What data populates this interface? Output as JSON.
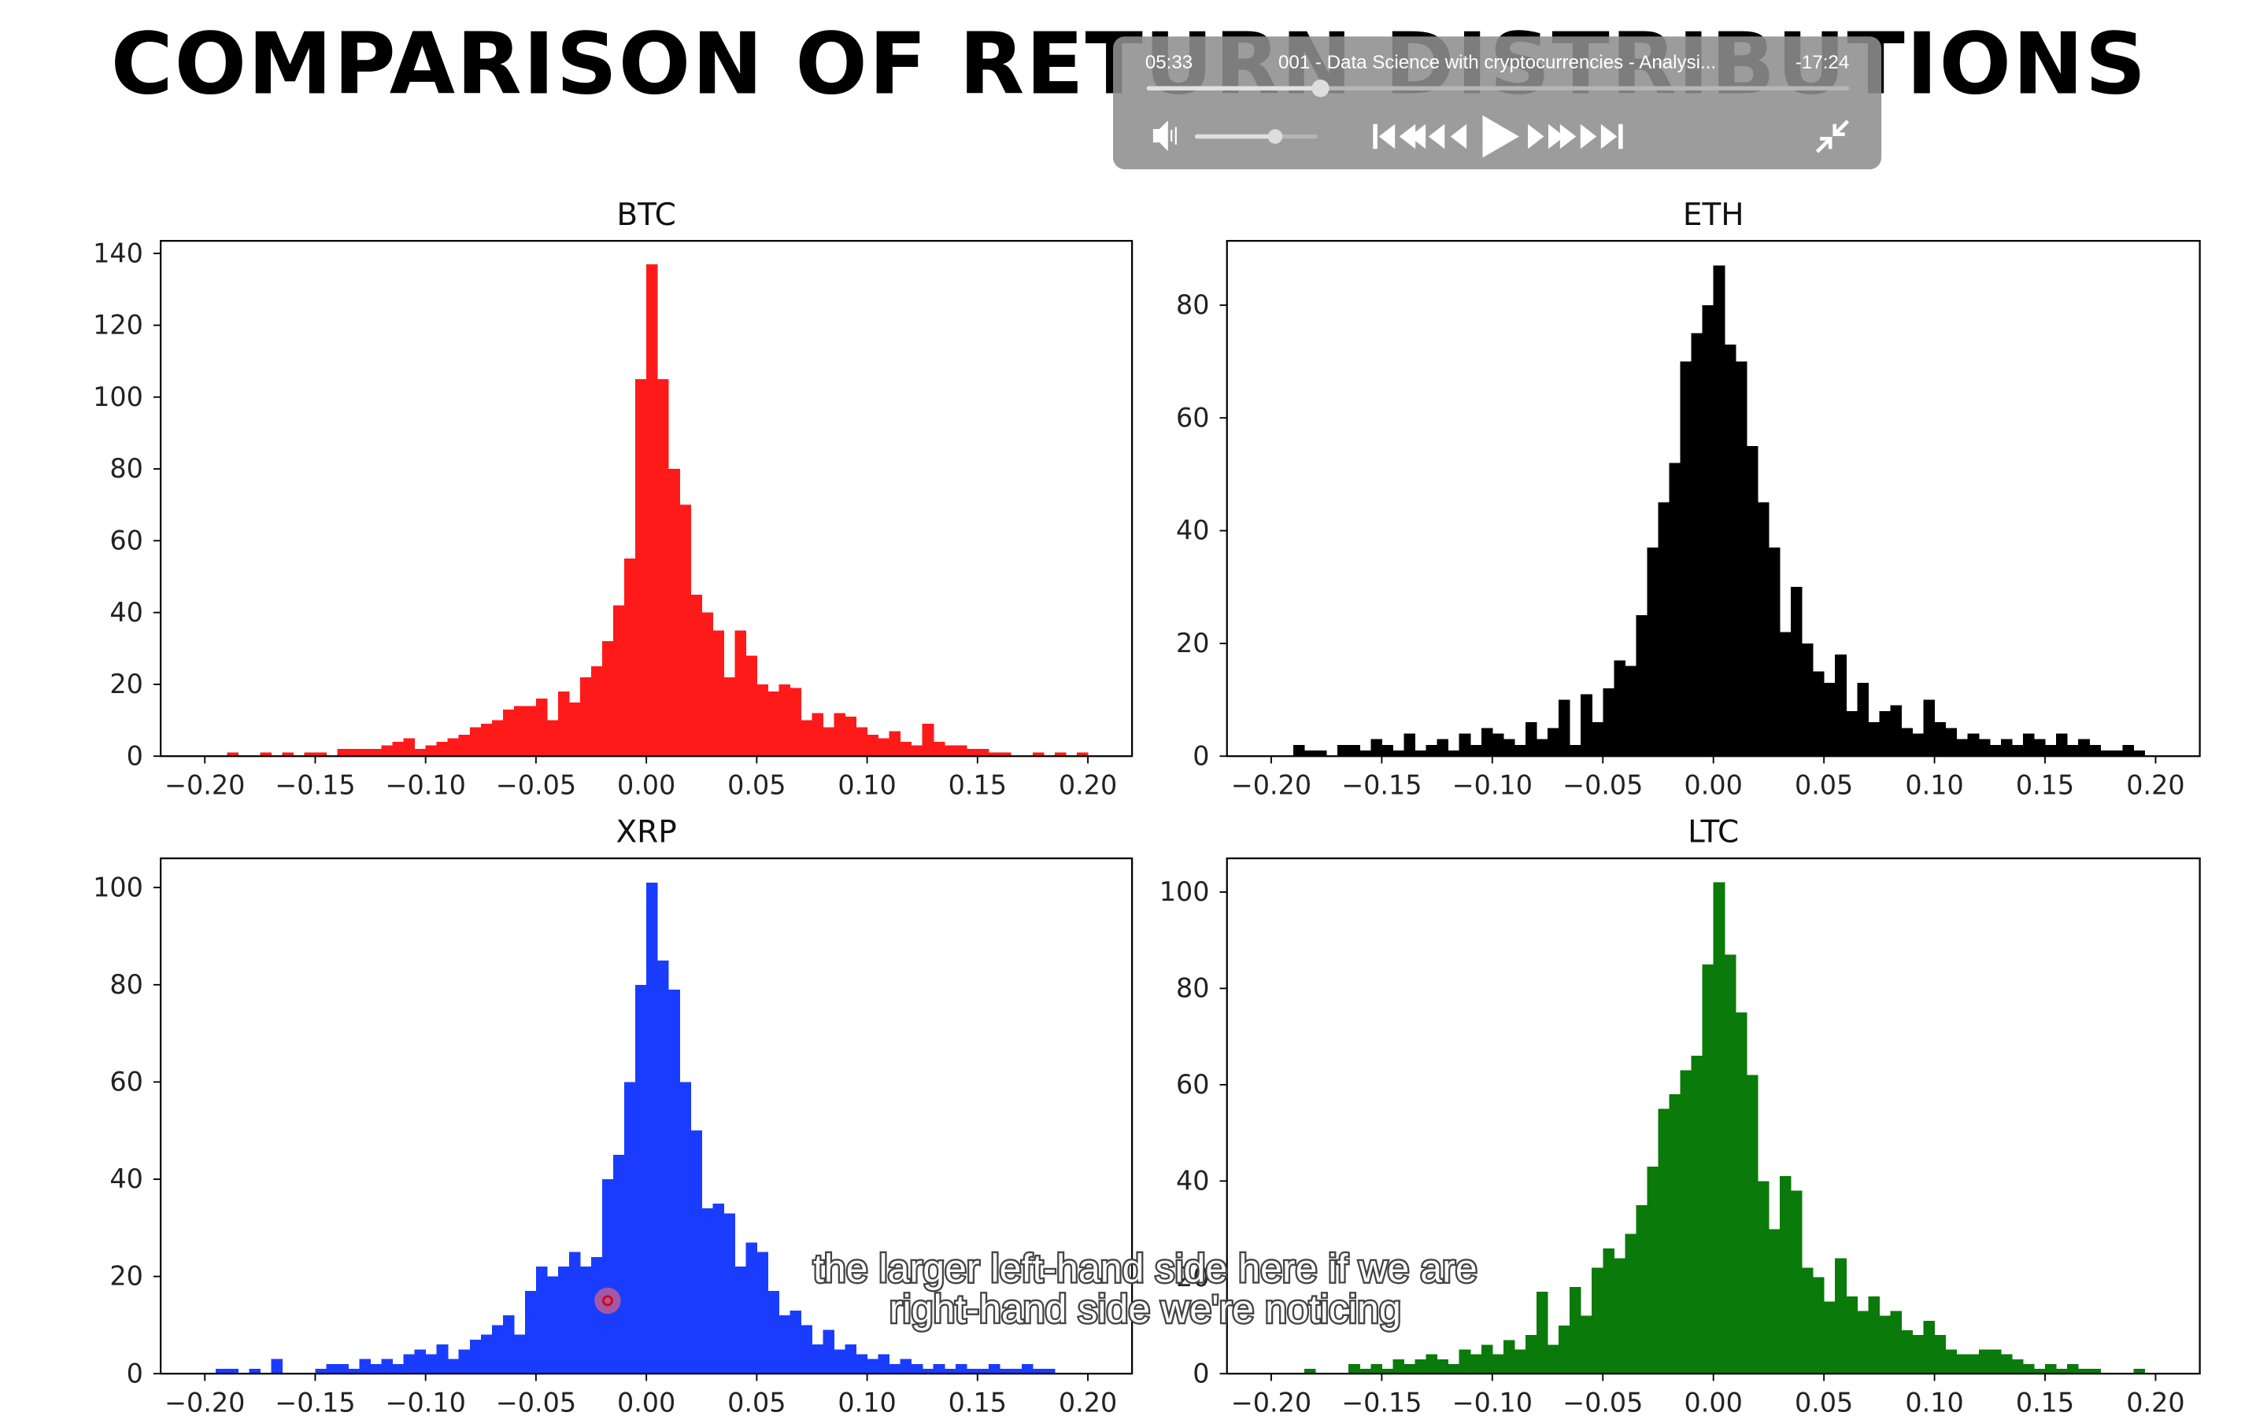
{
  "page_title": "COMPARISON OF RETURN DISTRIBUTIONS",
  "chart_data": [
    {
      "type": "histogram",
      "title": "BTC",
      "color": "#ff1a1a",
      "bins": [
        -0.2,
        -0.195,
        -0.19,
        -0.185,
        -0.18,
        -0.175,
        -0.17,
        -0.165,
        -0.16,
        -0.155,
        -0.15,
        -0.145,
        -0.14,
        -0.135,
        -0.13,
        -0.125,
        -0.12,
        -0.115,
        -0.11,
        -0.105,
        -0.1,
        -0.095,
        -0.09,
        -0.085,
        -0.08,
        -0.075,
        -0.07,
        -0.065,
        -0.06,
        -0.055,
        -0.05,
        -0.045,
        -0.04,
        -0.035,
        -0.03,
        -0.025,
        -0.02,
        -0.015,
        -0.01,
        -0.005,
        0,
        0.005,
        0.01,
        0.015,
        0.02,
        0.025,
        0.03,
        0.035,
        0.04,
        0.045,
        0.05,
        0.055,
        0.06,
        0.065,
        0.07,
        0.075,
        0.08,
        0.085,
        0.09,
        0.095,
        0.1,
        0.105,
        0.11,
        0.115,
        0.12,
        0.125,
        0.13,
        0.135,
        0.14,
        0.145,
        0.15,
        0.155,
        0.16,
        0.165,
        0.17,
        0.175,
        0.18,
        0.185,
        0.19,
        0.195,
        0.2
      ],
      "values": [
        0,
        0,
        1,
        0,
        0,
        1,
        0,
        1,
        0,
        1,
        1,
        0,
        2,
        2,
        2,
        2,
        3,
        4,
        5,
        2,
        3,
        4,
        5,
        6,
        8,
        9,
        10,
        13,
        14,
        14,
        16,
        10,
        18,
        15,
        22,
        25,
        32,
        42,
        55,
        105,
        137,
        105,
        80,
        70,
        45,
        40,
        35,
        22,
        35,
        28,
        20,
        18,
        20,
        19,
        10,
        12,
        8,
        12,
        11,
        8,
        6,
        5,
        7,
        4,
        3,
        9,
        4,
        3,
        3,
        2,
        2,
        1,
        1,
        0,
        0,
        1,
        0,
        1,
        0,
        1
      ],
      "xlim": [
        -0.22,
        0.22
      ],
      "ylim": [
        0,
        143.5
      ],
      "xticks": [
        {
          "value": -0.2,
          "label": "−0.20"
        },
        {
          "value": -0.15,
          "label": "−0.15"
        },
        {
          "value": -0.1,
          "label": "−0.10"
        },
        {
          "value": -0.05,
          "label": "−0.05"
        },
        {
          "value": 0,
          "label": "0.00"
        },
        {
          "value": 0.05,
          "label": "0.05"
        },
        {
          "value": 0.1,
          "label": "0.10"
        },
        {
          "value": 0.15,
          "label": "0.15"
        },
        {
          "value": 0.2,
          "label": "0.20"
        }
      ],
      "yticks": [
        0,
        20,
        40,
        60,
        80,
        100,
        120,
        140
      ]
    },
    {
      "type": "histogram",
      "title": "ETH",
      "color": "#000000",
      "bins": [
        -0.2,
        -0.195,
        -0.19,
        -0.185,
        -0.18,
        -0.175,
        -0.17,
        -0.165,
        -0.16,
        -0.155,
        -0.15,
        -0.145,
        -0.14,
        -0.135,
        -0.13,
        -0.125,
        -0.12,
        -0.115,
        -0.11,
        -0.105,
        -0.1,
        -0.095,
        -0.09,
        -0.085,
        -0.08,
        -0.075,
        -0.07,
        -0.065,
        -0.06,
        -0.055,
        -0.05,
        -0.045,
        -0.04,
        -0.035,
        -0.03,
        -0.025,
        -0.02,
        -0.015,
        -0.01,
        -0.005,
        0,
        0.005,
        0.01,
        0.015,
        0.02,
        0.025,
        0.03,
        0.035,
        0.04,
        0.045,
        0.05,
        0.055,
        0.06,
        0.065,
        0.07,
        0.075,
        0.08,
        0.085,
        0.09,
        0.095,
        0.1,
        0.105,
        0.11,
        0.115,
        0.12,
        0.125,
        0.13,
        0.135,
        0.14,
        0.145,
        0.15,
        0.155,
        0.16,
        0.165,
        0.17,
        0.175,
        0.18,
        0.185,
        0.19,
        0.195,
        0.2
      ],
      "values": [
        0,
        0,
        2,
        1,
        1,
        0,
        2,
        2,
        1,
        3,
        2,
        1,
        4,
        1,
        2,
        3,
        1,
        4,
        2,
        5,
        4,
        3,
        2,
        6,
        3,
        5,
        10,
        2,
        11,
        6,
        12,
        17,
        16,
        25,
        37,
        45,
        52,
        70,
        75,
        80,
        87,
        73,
        70,
        55,
        45,
        37,
        22,
        30,
        20,
        15,
        13,
        18,
        8,
        13,
        6,
        8,
        9,
        5,
        4,
        10,
        6,
        5,
        3,
        4,
        3,
        2,
        3,
        2,
        4,
        3,
        2,
        4,
        2,
        3,
        2,
        1,
        1,
        2,
        1,
        0
      ],
      "xlim": [
        -0.22,
        0.22
      ],
      "ylim": [
        0,
        91.4
      ],
      "xticks": [
        {
          "value": -0.2,
          "label": "−0.20"
        },
        {
          "value": -0.15,
          "label": "−0.15"
        },
        {
          "value": -0.1,
          "label": "−0.10"
        },
        {
          "value": -0.05,
          "label": "−0.05"
        },
        {
          "value": 0,
          "label": "0.00"
        },
        {
          "value": 0.05,
          "label": "0.05"
        },
        {
          "value": 0.1,
          "label": "0.10"
        },
        {
          "value": 0.15,
          "label": "0.15"
        },
        {
          "value": 0.2,
          "label": "0.20"
        }
      ],
      "yticks": [
        0,
        20,
        40,
        60,
        80
      ]
    },
    {
      "type": "histogram",
      "title": "XRP",
      "color": "#1a3cff",
      "bins": [
        -0.2,
        -0.195,
        -0.19,
        -0.185,
        -0.18,
        -0.175,
        -0.17,
        -0.165,
        -0.16,
        -0.155,
        -0.15,
        -0.145,
        -0.14,
        -0.135,
        -0.13,
        -0.125,
        -0.12,
        -0.115,
        -0.11,
        -0.105,
        -0.1,
        -0.095,
        -0.09,
        -0.085,
        -0.08,
        -0.075,
        -0.07,
        -0.065,
        -0.06,
        -0.055,
        -0.05,
        -0.045,
        -0.04,
        -0.035,
        -0.03,
        -0.025,
        -0.02,
        -0.015,
        -0.01,
        -0.005,
        0,
        0.005,
        0.01,
        0.015,
        0.02,
        0.025,
        0.03,
        0.035,
        0.04,
        0.045,
        0.05,
        0.055,
        0.06,
        0.065,
        0.07,
        0.075,
        0.08,
        0.085,
        0.09,
        0.095,
        0.1,
        0.105,
        0.11,
        0.115,
        0.12,
        0.125,
        0.13,
        0.135,
        0.14,
        0.145,
        0.15,
        0.155,
        0.16,
        0.165,
        0.17,
        0.175,
        0.18,
        0.185,
        0.19,
        0.195,
        0.2
      ],
      "values": [
        0,
        1,
        1,
        0,
        1,
        0,
        3,
        0,
        0,
        0,
        1,
        2,
        2,
        1,
        3,
        2,
        3,
        2,
        4,
        5,
        4,
        6,
        3,
        5,
        7,
        8,
        10,
        12,
        8,
        17,
        22,
        20,
        22,
        25,
        22,
        24,
        40,
        45,
        60,
        80,
        101,
        85,
        79,
        60,
        50,
        34,
        35,
        33,
        22,
        27,
        25,
        17,
        12,
        13,
        10,
        6,
        9,
        5,
        6,
        4,
        3,
        4,
        2,
        3,
        2,
        1,
        2,
        1,
        2,
        1,
        1,
        2,
        1,
        1,
        2,
        1,
        1,
        0,
        0,
        0
      ],
      "xlim": [
        -0.22,
        0.22
      ],
      "ylim": [
        0,
        106
      ],
      "xticks": [
        {
          "value": -0.2,
          "label": "−0.20"
        },
        {
          "value": -0.15,
          "label": "−0.15"
        },
        {
          "value": -0.1,
          "label": "−0.10"
        },
        {
          "value": -0.05,
          "label": "−0.05"
        },
        {
          "value": 0,
          "label": "0.00"
        },
        {
          "value": 0.05,
          "label": "0.05"
        },
        {
          "value": 0.1,
          "label": "0.10"
        },
        {
          "value": 0.15,
          "label": "0.15"
        },
        {
          "value": 0.2,
          "label": "0.20"
        }
      ],
      "yticks": [
        0,
        20,
        40,
        60,
        80,
        100
      ]
    },
    {
      "type": "histogram",
      "title": "LTC",
      "color": "#0a7a0a",
      "bins": [
        -0.2,
        -0.195,
        -0.19,
        -0.185,
        -0.18,
        -0.175,
        -0.17,
        -0.165,
        -0.16,
        -0.155,
        -0.15,
        -0.145,
        -0.14,
        -0.135,
        -0.13,
        -0.125,
        -0.12,
        -0.115,
        -0.11,
        -0.105,
        -0.1,
        -0.095,
        -0.09,
        -0.085,
        -0.08,
        -0.075,
        -0.07,
        -0.065,
        -0.06,
        -0.055,
        -0.05,
        -0.045,
        -0.04,
        -0.035,
        -0.03,
        -0.025,
        -0.02,
        -0.015,
        -0.01,
        -0.005,
        0,
        0.005,
        0.01,
        0.015,
        0.02,
        0.025,
        0.03,
        0.035,
        0.04,
        0.045,
        0.05,
        0.055,
        0.06,
        0.065,
        0.07,
        0.075,
        0.08,
        0.085,
        0.09,
        0.095,
        0.1,
        0.105,
        0.11,
        0.115,
        0.12,
        0.125,
        0.13,
        0.135,
        0.14,
        0.145,
        0.15,
        0.155,
        0.16,
        0.165,
        0.17,
        0.175,
        0.18,
        0.185,
        0.19,
        0.195,
        0.2
      ],
      "values": [
        0,
        0,
        0,
        1,
        0,
        0,
        0,
        2,
        1,
        2,
        1,
        3,
        2,
        3,
        4,
        3,
        2,
        5,
        4,
        6,
        4,
        7,
        5,
        8,
        17,
        6,
        10,
        18,
        12,
        22,
        26,
        24,
        29,
        35,
        43,
        55,
        58,
        63,
        66,
        85,
        102,
        87,
        75,
        62,
        40,
        30,
        41,
        38,
        22,
        20,
        15,
        24,
        16,
        13,
        16,
        12,
        13,
        9,
        8,
        11,
        8,
        5,
        4,
        4,
        5,
        5,
        4,
        3,
        2,
        1,
        2,
        1,
        2,
        1,
        1,
        0,
        0,
        0,
        1,
        0
      ],
      "xlim": [
        -0.22,
        0.22
      ],
      "ylim": [
        0,
        107
      ],
      "xticks": [
        {
          "value": -0.2,
          "label": "−0.20"
        },
        {
          "value": -0.15,
          "label": "−0.15"
        },
        {
          "value": -0.1,
          "label": "−0.10"
        },
        {
          "value": -0.05,
          "label": "−0.05"
        },
        {
          "value": 0,
          "label": "0.00"
        },
        {
          "value": 0.05,
          "label": "0.05"
        },
        {
          "value": 0.1,
          "label": "0.10"
        },
        {
          "value": 0.15,
          "label": "0.15"
        },
        {
          "value": 0.2,
          "label": "0.20"
        }
      ],
      "yticks": [
        0,
        20,
        40,
        60,
        80,
        100
      ]
    }
  ],
  "player": {
    "elapsed": "05:33",
    "title": "001 - Data Science with cryptocurrencies - Analysi...",
    "remaining": "-17:24"
  },
  "subtitles": [
    "the larger left-hand side here if we are",
    "right-hand side we're noticing"
  ]
}
